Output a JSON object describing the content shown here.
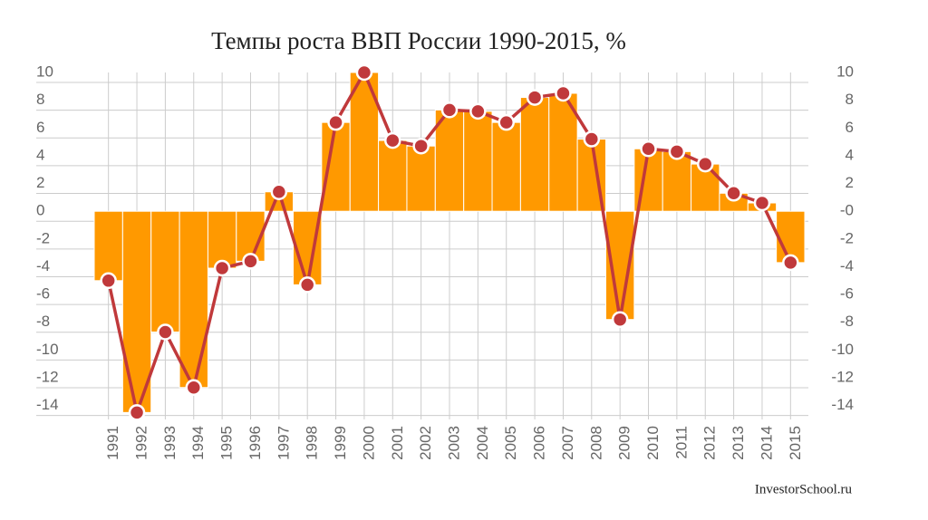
{
  "chart_data": {
    "type": "bar",
    "title": "Темпы роста ВВП России 1990-2015, %",
    "source": "InvestorSchool.ru",
    "categories": [
      "1991",
      "1992",
      "1993",
      "1994",
      "1995",
      "1996",
      "1997",
      "1998",
      "1999",
      "2000",
      "2001",
      "2002",
      "2003",
      "2004",
      "2005",
      "2006",
      "2007",
      "2008",
      "2009",
      "2010",
      "2011",
      "2012",
      "2013",
      "2014",
      "2015"
    ],
    "values": [
      -5.0,
      -14.5,
      -8.7,
      -12.7,
      -4.1,
      -3.6,
      1.4,
      -5.3,
      6.4,
      10.0,
      5.1,
      4.7,
      7.3,
      7.2,
      6.4,
      8.2,
      8.5,
      5.2,
      -7.8,
      4.5,
      4.3,
      3.4,
      1.3,
      0.6,
      -3.7
    ],
    "color": "#ff9900",
    "line_color": "#c0393b",
    "ylim": [
      -15,
      10
    ],
    "yticks": [
      10,
      8,
      6,
      4,
      2,
      0,
      -2,
      -4,
      -6,
      -8,
      -10,
      -12,
      -14
    ],
    "y2lim": [
      -15,
      10
    ],
    "y2ticks": [
      10,
      8,
      6,
      4,
      2,
      {
        "value": 0,
        "label": "-0"
      },
      -2,
      -4,
      -6,
      -8,
      -10,
      -12,
      -14
    ],
    "grid": true
  }
}
